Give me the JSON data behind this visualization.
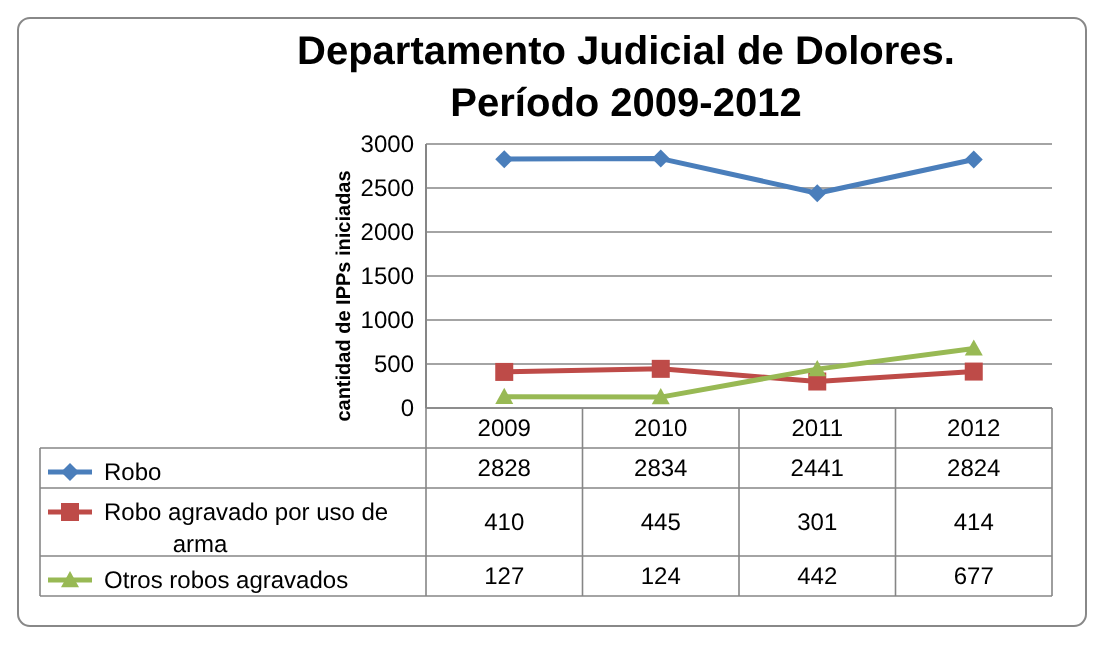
{
  "chart_data": {
    "type": "line",
    "title": "Departamento Judicial de Dolores.\nPeríodo  2009-2012",
    "ylabel": "cantidad de IPPs iniciadas",
    "categories": [
      "2009",
      "2010",
      "2011",
      "2012"
    ],
    "series": [
      {
        "name": "Robo",
        "color": "#4a7ebb",
        "marker": "diamond",
        "values": [
          2828,
          2834,
          2441,
          2824
        ]
      },
      {
        "name": "Robo agravado por uso de arma",
        "color": "#be4b48",
        "marker": "square",
        "values": [
          410,
          445,
          301,
          414
        ]
      },
      {
        "name": "Otros robos agravados",
        "color": "#98b954",
        "marker": "triangle",
        "values": [
          127,
          124,
          442,
          677
        ]
      }
    ],
    "ylim": [
      0,
      3000
    ],
    "yticks": [
      0,
      500,
      1000,
      1500,
      2000,
      2500,
      3000
    ],
    "grid": "y",
    "legend": "bottom",
    "data_labels": true
  }
}
